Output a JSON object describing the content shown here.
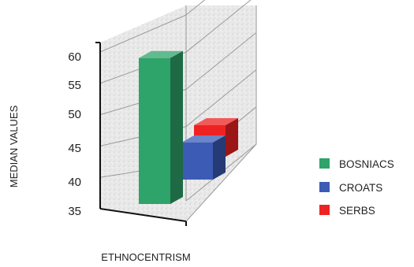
{
  "chart_data": {
    "type": "bar",
    "style": "3d-clustered",
    "xlabel": "ETHNOCENTRISM",
    "ylabel": "MEDIAN VALUES",
    "ylim": [
      35,
      60
    ],
    "yticks": [
      35,
      40,
      45,
      50,
      55,
      60
    ],
    "series": [
      {
        "name": "BOSNIACS",
        "value": 59,
        "color": "#2ea36a"
      },
      {
        "name": "CROATS",
        "value": 44,
        "color": "#3b5bb5"
      },
      {
        "name": "SERBS",
        "value": 48,
        "color": "#ee2222"
      }
    ],
    "legend": "right",
    "grid": true
  }
}
